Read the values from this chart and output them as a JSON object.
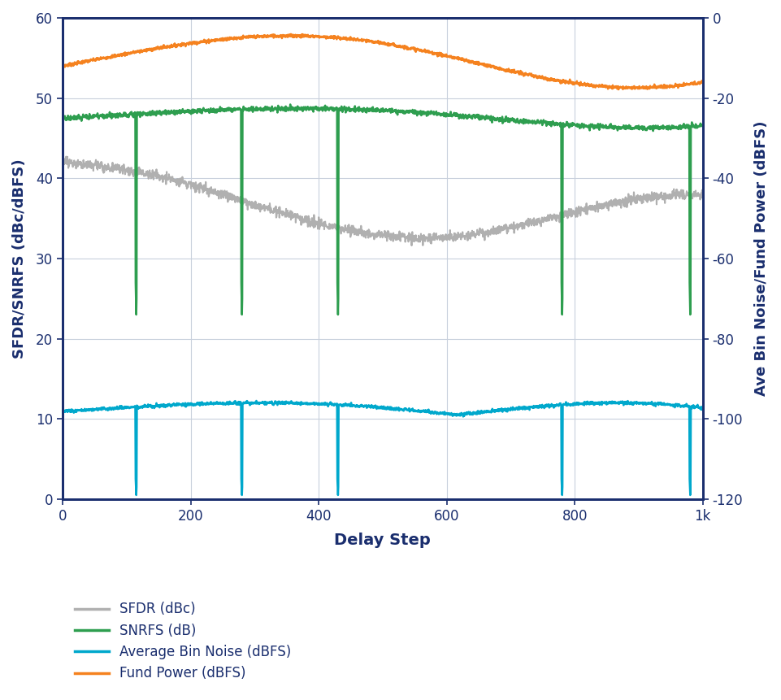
{
  "xlabel": "Delay Step",
  "ylabel_left": "SFDR/SNRFS (dBc/dBFS)",
  "ylabel_right": "Ave Bin Noise/Fund Power (dBFS)",
  "xlim": [
    0,
    1000
  ],
  "ylim_left": [
    0,
    60
  ],
  "ylim_right": [
    -120,
    0
  ],
  "xtick_labels": [
    "0",
    "200",
    "400",
    "600",
    "800",
    "1k"
  ],
  "xtick_positions": [
    0,
    200,
    400,
    600,
    800,
    1000
  ],
  "ytick_left": [
    0,
    10,
    20,
    30,
    40,
    50,
    60
  ],
  "ytick_right": [
    -120,
    -100,
    -80,
    -60,
    -40,
    -20,
    0
  ],
  "grid_color": "#c8d0dc",
  "bg_color": "#ffffff",
  "colors": {
    "sfdr": "#b0b0b0",
    "snrfs": "#2e9e4f",
    "bin_noise": "#00a8cc",
    "fund_power": "#f5821f"
  },
  "legend_labels": [
    "SFDR (dBc)",
    "SNRFS (dB)",
    "Average Bin Noise (dBFS)",
    "Fund Power (dBFS)"
  ],
  "axis_color": "#1a2e6e",
  "drop_positions_x": [
    115,
    280,
    430,
    780,
    980
  ],
  "n_points": 2000,
  "font_color": "#1a2e6e"
}
